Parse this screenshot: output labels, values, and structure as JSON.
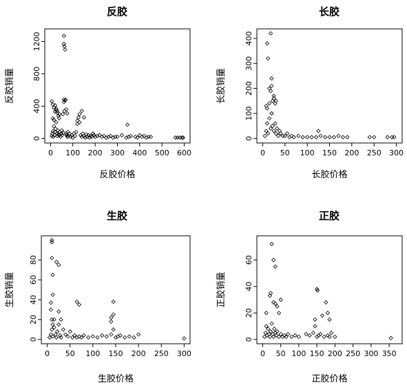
{
  "chart_data": [
    {
      "type": "scatter",
      "title": "反胶",
      "xlabel": "反胶价格",
      "ylabel": "反胶销量",
      "xlim": [
        0,
        600
      ],
      "ylim": [
        0,
        1300
      ],
      "xticks": [
        0,
        100,
        200,
        300,
        400,
        500,
        600
      ],
      "yticks": [
        0,
        400,
        800,
        1200
      ],
      "x": [
        5,
        8,
        10,
        12,
        15,
        18,
        20,
        22,
        25,
        28,
        30,
        32,
        35,
        38,
        40,
        42,
        45,
        48,
        50,
        52,
        55,
        58,
        60,
        62,
        65,
        68,
        70,
        72,
        75,
        78,
        80,
        85,
        90,
        95,
        100,
        105,
        110,
        115,
        120,
        125,
        130,
        135,
        140,
        145,
        150,
        155,
        160,
        165,
        170,
        175,
        180,
        185,
        190,
        195,
        200,
        210,
        220,
        230,
        240,
        250,
        260,
        270,
        280,
        290,
        300,
        320,
        340,
        350,
        360,
        380,
        390,
        400,
        410,
        420,
        430,
        440,
        450,
        560,
        570,
        580,
        590,
        595,
        5,
        10,
        15,
        20,
        25,
        30,
        35,
        40,
        60,
        62,
        70,
        75,
        120,
        130,
        140,
        150,
        60,
        65,
        60,
        20,
        25,
        30,
        10,
        15,
        345
      ],
      "y": [
        30,
        60,
        90,
        20,
        150,
        40,
        80,
        120,
        200,
        60,
        30,
        100,
        50,
        250,
        40,
        80,
        20,
        60,
        100,
        40,
        300,
        70,
        1270,
        1140,
        1100,
        480,
        60,
        40,
        20,
        80,
        30,
        60,
        20,
        40,
        10,
        60,
        30,
        80,
        180,
        260,
        300,
        40,
        20,
        60,
        30,
        10,
        50,
        20,
        40,
        10,
        30,
        20,
        60,
        40,
        20,
        30,
        40,
        20,
        30,
        10,
        20,
        30,
        10,
        20,
        20,
        40,
        10,
        20,
        30,
        20,
        10,
        40,
        20,
        30,
        10,
        20,
        20,
        10,
        10,
        10,
        10,
        10,
        460,
        420,
        380,
        330,
        350,
        320,
        280,
        300,
        450,
        340,
        360,
        310,
        220,
        200,
        340,
        260,
        480,
        470,
        1170,
        410,
        370,
        340,
        250,
        230,
        170
      ]
    },
    {
      "type": "scatter",
      "title": "长胶",
      "xlabel": "长胶价格",
      "ylabel": "长胶销量",
      "xlim": [
        0,
        300
      ],
      "ylim": [
        0,
        420
      ],
      "xticks": [
        0,
        50,
        100,
        150,
        200,
        250,
        300
      ],
      "yticks": [
        0,
        100,
        200,
        300,
        400
      ],
      "x": [
        5,
        8,
        10,
        12,
        15,
        18,
        20,
        22,
        25,
        28,
        30,
        32,
        35,
        38,
        40,
        45,
        50,
        55,
        60,
        65,
        70,
        80,
        90,
        100,
        110,
        120,
        125,
        130,
        140,
        150,
        160,
        170,
        180,
        190,
        240,
        250,
        280,
        290,
        295,
        10,
        12,
        15,
        18,
        20,
        25,
        30,
        8,
        10,
        15,
        20,
        22,
        25,
        28,
        18,
        20
      ],
      "y": [
        10,
        30,
        60,
        20,
        80,
        40,
        100,
        50,
        30,
        60,
        20,
        40,
        10,
        30,
        20,
        10,
        10,
        20,
        5,
        10,
        5,
        10,
        5,
        5,
        5,
        5,
        30,
        10,
        5,
        5,
        5,
        10,
        5,
        5,
        5,
        5,
        5,
        5,
        5,
        380,
        320,
        200,
        190,
        240,
        160,
        150,
        130,
        120,
        140,
        100,
        150,
        170,
        140,
        420,
        210
      ]
    },
    {
      "type": "scatter",
      "title": "生胶",
      "xlabel": "生胶价格",
      "ylabel": "生胶销量",
      "xlim": [
        0,
        300
      ],
      "ylim": [
        0,
        100
      ],
      "xticks": [
        0,
        50,
        100,
        150,
        200,
        250,
        300
      ],
      "yticks": [
        0,
        20,
        40,
        60,
        80
      ],
      "x": [
        5,
        8,
        10,
        12,
        15,
        18,
        20,
        22,
        25,
        28,
        30,
        35,
        40,
        45,
        50,
        55,
        60,
        65,
        70,
        75,
        80,
        90,
        100,
        110,
        120,
        130,
        140,
        145,
        150,
        155,
        160,
        170,
        180,
        190,
        200,
        300,
        10,
        10,
        10,
        12,
        12,
        8,
        8,
        20,
        25,
        25,
        30,
        65,
        70,
        140,
        145,
        145,
        140,
        10,
        12,
        15
      ],
      "y": [
        2,
        5,
        10,
        3,
        20,
        5,
        2,
        8,
        15,
        4,
        2,
        10,
        5,
        3,
        8,
        2,
        4,
        2,
        3,
        2,
        4,
        2,
        3,
        2,
        4,
        3,
        5,
        10,
        2,
        3,
        4,
        2,
        3,
        2,
        5,
        1,
        100,
        98,
        82,
        65,
        45,
        37,
        30,
        78,
        75,
        28,
        20,
        38,
        35,
        22,
        25,
        38,
        18,
        20,
        15,
        12
      ]
    },
    {
      "type": "scatter",
      "title": "正胶",
      "xlabel": "正胶价格",
      "ylabel": "正胶销量",
      "xlim": [
        0,
        370
      ],
      "ylim": [
        0,
        75
      ],
      "xticks": [
        0,
        50,
        100,
        150,
        200,
        250,
        300,
        350
      ],
      "yticks": [
        0,
        20,
        40,
        60
      ],
      "x": [
        5,
        8,
        10,
        12,
        15,
        18,
        20,
        22,
        25,
        28,
        30,
        32,
        35,
        38,
        40,
        45,
        50,
        55,
        60,
        65,
        70,
        80,
        90,
        100,
        120,
        130,
        140,
        145,
        150,
        155,
        160,
        170,
        180,
        185,
        190,
        200,
        355,
        10,
        20,
        22,
        25,
        30,
        35,
        40,
        45,
        50,
        30,
        35,
        150,
        152,
        145,
        165,
        175,
        180,
        185
      ],
      "y": [
        2,
        5,
        10,
        3,
        8,
        4,
        2,
        6,
        12,
        4,
        2,
        8,
        5,
        3,
        6,
        2,
        4,
        2,
        3,
        2,
        4,
        2,
        3,
        2,
        4,
        3,
        5,
        10,
        2,
        3,
        4,
        2,
        3,
        2,
        5,
        2,
        1,
        20,
        33,
        35,
        72,
        60,
        55,
        25,
        20,
        30,
        28,
        27,
        38,
        37,
        15,
        18,
        28,
        20,
        15
      ]
    }
  ]
}
